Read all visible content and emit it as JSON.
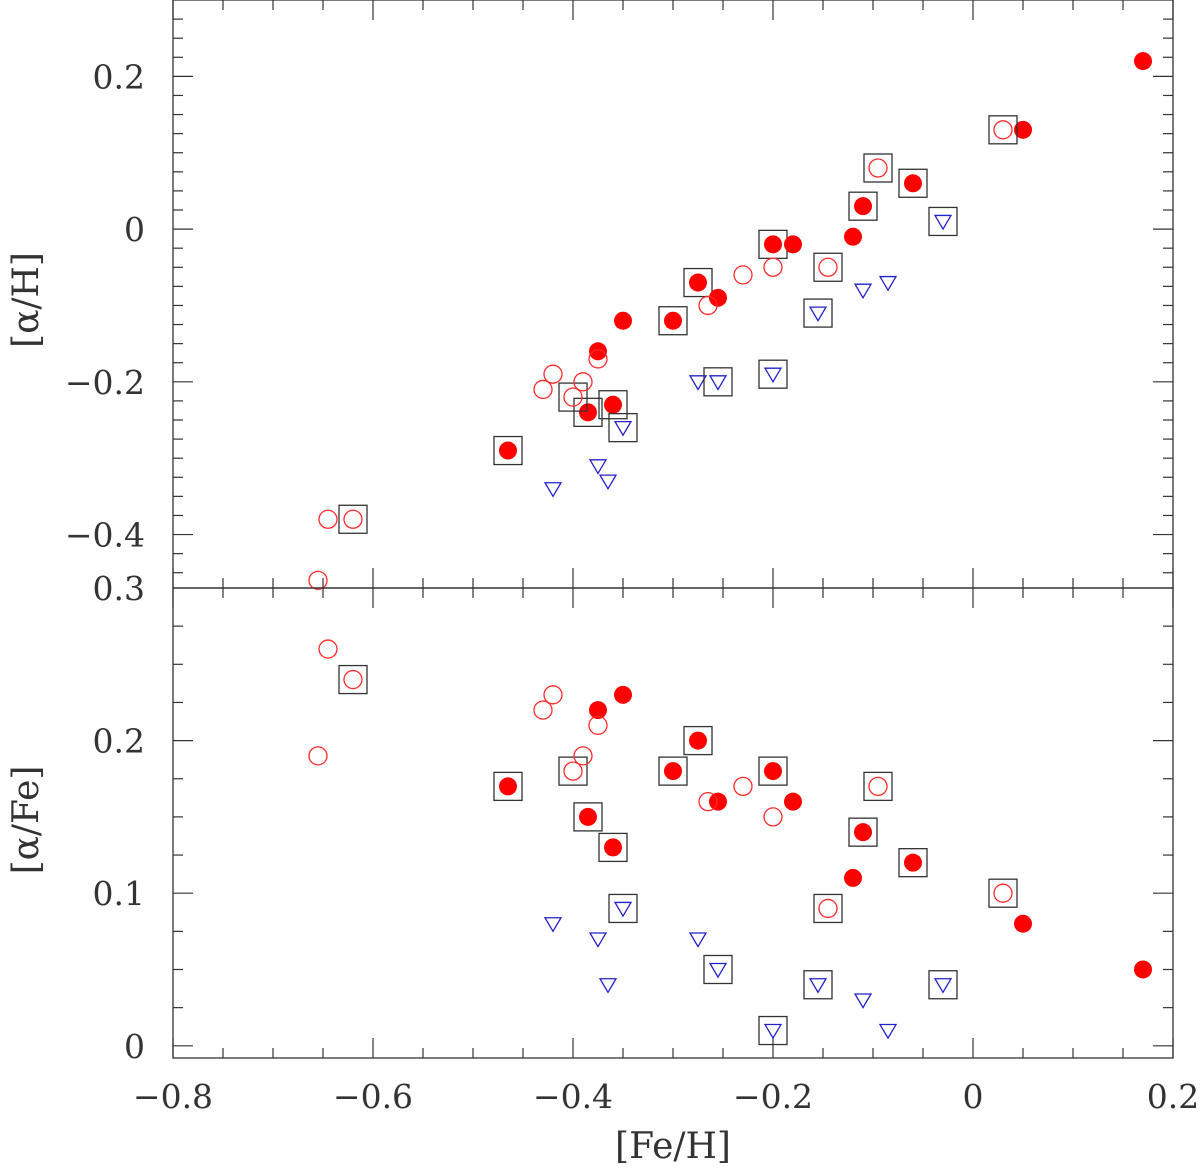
{
  "colors": {
    "filled": "#ff0000",
    "open": "#ff2a2a",
    "triangle": "#2222cc",
    "box": "#333333",
    "axis": "#333333"
  },
  "chart_data": [
    {
      "type": "scatter",
      "panel": "top",
      "ylabel": "[α/H]",
      "xlim": [
        -0.8,
        0.2
      ],
      "ylim": [
        -0.47,
        0.3
      ],
      "xticks_major": [
        -0.8,
        -0.6,
        -0.4,
        -0.2,
        0,
        0.2
      ],
      "yticks_major": [
        -0.4,
        -0.2,
        0,
        0.2
      ],
      "ytick_labels": [
        "−0.4",
        "−0.2",
        "0",
        "0.2"
      ],
      "top_label": "0.3",
      "series": [
        {
          "marker": "filled-circle",
          "points": [
            {
              "x": -0.465,
              "y": -0.29,
              "boxed": true
            },
            {
              "x": -0.375,
              "y": -0.16
            },
            {
              "x": -0.385,
              "y": -0.24,
              "boxed": true
            },
            {
              "x": -0.36,
              "y": -0.23,
              "boxed": true
            },
            {
              "x": -0.35,
              "y": -0.12
            },
            {
              "x": -0.3,
              "y": -0.12,
              "boxed": true
            },
            {
              "x": -0.275,
              "y": -0.07,
              "boxed": true
            },
            {
              "x": -0.255,
              "y": -0.09
            },
            {
              "x": -0.2,
              "y": -0.02,
              "boxed": true
            },
            {
              "x": -0.18,
              "y": -0.02
            },
            {
              "x": -0.12,
              "y": -0.01
            },
            {
              "x": -0.11,
              "y": 0.03,
              "boxed": true
            },
            {
              "x": -0.06,
              "y": 0.06,
              "boxed": true
            },
            {
              "x": 0.05,
              "y": 0.13
            },
            {
              "x": 0.17,
              "y": 0.22
            }
          ]
        },
        {
          "marker": "open-circle",
          "points": [
            {
              "x": -0.655,
              "y": -0.46
            },
            {
              "x": -0.645,
              "y": -0.38
            },
            {
              "x": -0.62,
              "y": -0.38,
              "boxed": true
            },
            {
              "x": -0.43,
              "y": -0.21
            },
            {
              "x": -0.42,
              "y": -0.19
            },
            {
              "x": -0.4,
              "y": -0.22,
              "boxed": true
            },
            {
              "x": -0.39,
              "y": -0.2
            },
            {
              "x": -0.375,
              "y": -0.17
            },
            {
              "x": -0.265,
              "y": -0.1
            },
            {
              "x": -0.23,
              "y": -0.06
            },
            {
              "x": -0.2,
              "y": -0.05
            },
            {
              "x": -0.145,
              "y": -0.05,
              "boxed": true
            },
            {
              "x": -0.095,
              "y": 0.08,
              "boxed": true
            },
            {
              "x": 0.03,
              "y": 0.13,
              "boxed": true
            }
          ]
        },
        {
          "marker": "open-triangle-down",
          "points": [
            {
              "x": -0.42,
              "y": -0.34
            },
            {
              "x": -0.375,
              "y": -0.31
            },
            {
              "x": -0.365,
              "y": -0.33
            },
            {
              "x": -0.35,
              "y": -0.26,
              "boxed": true
            },
            {
              "x": -0.275,
              "y": -0.2
            },
            {
              "x": -0.255,
              "y": -0.2,
              "boxed": true
            },
            {
              "x": -0.2,
              "y": -0.19,
              "boxed": true
            },
            {
              "x": -0.155,
              "y": -0.11,
              "boxed": true
            },
            {
              "x": -0.11,
              "y": -0.08
            },
            {
              "x": -0.085,
              "y": -0.07
            },
            {
              "x": -0.03,
              "y": 0.01,
              "boxed": true
            }
          ]
        }
      ]
    },
    {
      "type": "scatter",
      "panel": "bottom",
      "ylabel": "[α/Fe]",
      "xlabel": "[Fe/H]",
      "xlim": [
        -0.8,
        0.2
      ],
      "ylim": [
        -0.008,
        0.3
      ],
      "xticks_major": [
        -0.8,
        -0.6,
        -0.4,
        -0.2,
        0,
        0.2
      ],
      "xtick_labels": [
        "−0.8",
        "−0.6",
        "−0.4",
        "−0.2",
        "0",
        "0.2"
      ],
      "yticks_major": [
        0,
        0.1,
        0.2
      ],
      "ytick_labels": [
        "0",
        "0.1",
        "0.2"
      ],
      "series": [
        {
          "marker": "filled-circle",
          "points": [
            {
              "x": -0.465,
              "y": 0.17,
              "boxed": true
            },
            {
              "x": -0.375,
              "y": 0.22
            },
            {
              "x": -0.385,
              "y": 0.15,
              "boxed": true
            },
            {
              "x": -0.36,
              "y": 0.13,
              "boxed": true
            },
            {
              "x": -0.35,
              "y": 0.23
            },
            {
              "x": -0.3,
              "y": 0.18,
              "boxed": true
            },
            {
              "x": -0.275,
              "y": 0.2,
              "boxed": true
            },
            {
              "x": -0.255,
              "y": 0.16
            },
            {
              "x": -0.2,
              "y": 0.18,
              "boxed": true
            },
            {
              "x": -0.18,
              "y": 0.16
            },
            {
              "x": -0.12,
              "y": 0.11
            },
            {
              "x": -0.11,
              "y": 0.14,
              "boxed": true
            },
            {
              "x": -0.06,
              "y": 0.12,
              "boxed": true
            },
            {
              "x": 0.05,
              "y": 0.08
            },
            {
              "x": 0.17,
              "y": 0.05
            }
          ]
        },
        {
          "marker": "open-circle",
          "points": [
            {
              "x": -0.655,
              "y": 0.19
            },
            {
              "x": -0.645,
              "y": 0.26
            },
            {
              "x": -0.62,
              "y": 0.24,
              "boxed": true
            },
            {
              "x": -0.43,
              "y": 0.22
            },
            {
              "x": -0.42,
              "y": 0.23
            },
            {
              "x": -0.4,
              "y": 0.18,
              "boxed": true
            },
            {
              "x": -0.39,
              "y": 0.19
            },
            {
              "x": -0.375,
              "y": 0.21
            },
            {
              "x": -0.265,
              "y": 0.16
            },
            {
              "x": -0.23,
              "y": 0.17
            },
            {
              "x": -0.2,
              "y": 0.15
            },
            {
              "x": -0.145,
              "y": 0.09,
              "boxed": true
            },
            {
              "x": -0.095,
              "y": 0.17,
              "boxed": true
            },
            {
              "x": 0.03,
              "y": 0.1,
              "boxed": true
            }
          ]
        },
        {
          "marker": "open-triangle-down",
          "points": [
            {
              "x": -0.42,
              "y": 0.08
            },
            {
              "x": -0.375,
              "y": 0.07
            },
            {
              "x": -0.365,
              "y": 0.04
            },
            {
              "x": -0.35,
              "y": 0.09,
              "boxed": true
            },
            {
              "x": -0.275,
              "y": 0.07
            },
            {
              "x": -0.255,
              "y": 0.05,
              "boxed": true
            },
            {
              "x": -0.2,
              "y": 0.01,
              "boxed": true
            },
            {
              "x": -0.155,
              "y": 0.04,
              "boxed": true
            },
            {
              "x": -0.11,
              "y": 0.03
            },
            {
              "x": -0.085,
              "y": 0.01
            },
            {
              "x": -0.03,
              "y": 0.04,
              "boxed": true
            }
          ]
        }
      ]
    }
  ]
}
